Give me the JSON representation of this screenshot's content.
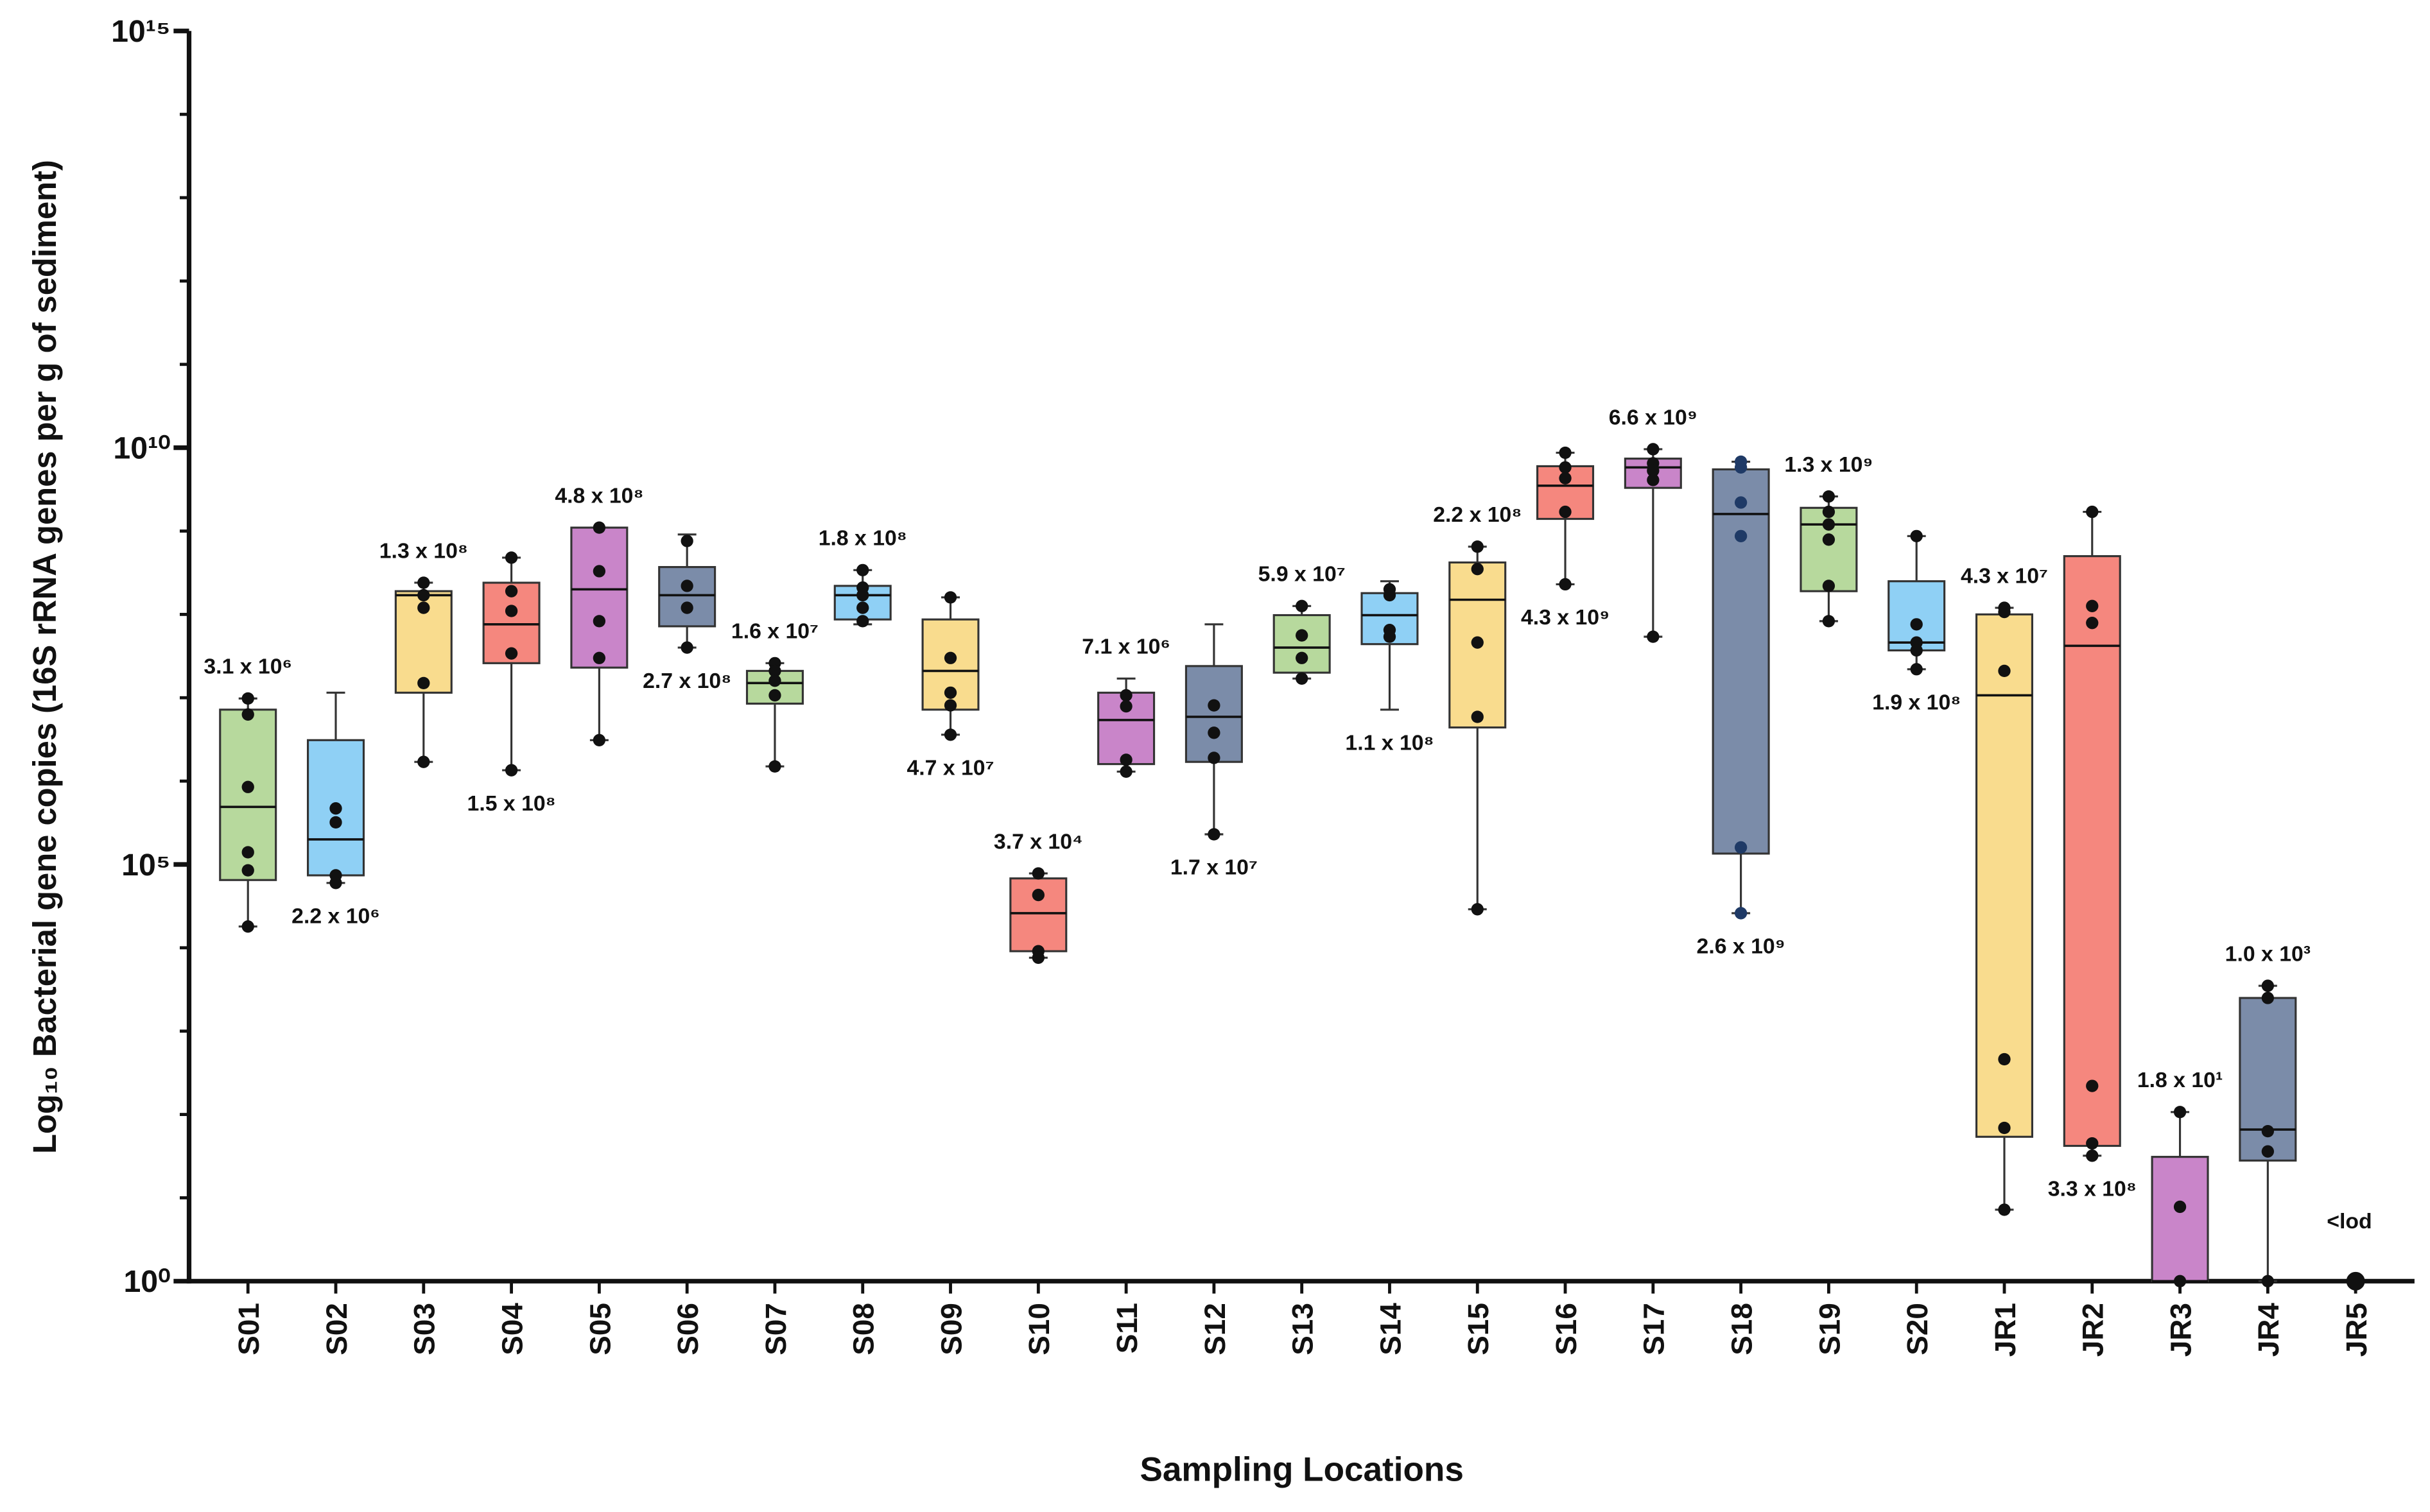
{
  "chart_data": {
    "type": "box",
    "xlabel": "Sampling Locations",
    "ylabel": "Log₁₀ Bacterial gene copies (16S rRNA genes per g of sediment)",
    "log_y": true,
    "ylim": [
      1,
      1000000000000000.0
    ],
    "yticks": [
      {
        "value": 1,
        "label": "10⁰"
      },
      {
        "value": 100000.0,
        "label": "10⁵"
      },
      {
        "value": 10000000000.0,
        "label": "10¹⁰"
      },
      {
        "value": 1000000000000000.0,
        "label": "10¹⁵"
      }
    ],
    "yminor": [
      10,
      100,
      1000,
      10000,
      1000000.0,
      10000000.0,
      100000000.0,
      1000000000.0,
      100000000000.0,
      1000000000000.0,
      10000000000000.0,
      100000000000000.0
    ],
    "point_color": "#111111",
    "edge_color": "#333333",
    "categories": [
      "S01",
      "S02",
      "S03",
      "S04",
      "S05",
      "S06",
      "S07",
      "S08",
      "S09",
      "S10",
      "S11",
      "S12",
      "S13",
      "S14",
      "S15",
      "S16",
      "S17",
      "S18",
      "S19",
      "S20",
      "JR1",
      "JR2",
      "JR3",
      "JR4",
      "JR5"
    ],
    "series": [
      {
        "name": "S01",
        "color": "#b7d99d",
        "whislo": 18000.0,
        "q1": 65000.0,
        "med": 490000.0,
        "q3": 7200000.0,
        "whishi": 9800000.0,
        "points": [
          9800000.0,
          6300000.0,
          850000.0,
          140000.0,
          85000.0,
          18000.0
        ],
        "label": "3.1 x 10⁶"
      },
      {
        "name": "S02",
        "color": "#8fd0f5",
        "whislo": 60000.0,
        "q1": 74000.0,
        "med": 200000.0,
        "q3": 3100000.0,
        "whishi": 11500000.0,
        "points": [
          470000.0,
          320000.0,
          74000.0,
          60000.0
        ],
        "label": "2.2 x 10⁶"
      },
      {
        "name": "S03",
        "color": "#f9dc8e",
        "whislo": 1700000.0,
        "q1": 11500000.0,
        "med": 170000000.0,
        "q3": 190000000.0,
        "whishi": 240000000.0,
        "points": [
          240000000.0,
          170000000.0,
          120000000.0,
          15000000.0,
          1700000.0
        ],
        "label": "1.3 x 10⁸"
      },
      {
        "name": "S04",
        "color": "#f5877e",
        "whislo": 1350000.0,
        "q1": 26000000.0,
        "med": 76000000.0,
        "q3": 240000000.0,
        "whishi": 480000000.0,
        "points": [
          480000000.0,
          190000000.0,
          110000000.0,
          34000000.0,
          1350000.0
        ],
        "label": "1.5 x 10⁸"
      },
      {
        "name": "S05",
        "color": "#c985c9",
        "whislo": 3100000.0,
        "q1": 23000000.0,
        "med": 200000000.0,
        "q3": 1100000000.0,
        "whishi": 1100000000.0,
        "points": [
          1100000000.0,
          330000000.0,
          83000000.0,
          30000000.0,
          3100000.0
        ],
        "label": "4.8 x 10⁸"
      },
      {
        "name": "S06",
        "color": "#7b8ca9",
        "whislo": 40000000.0,
        "q1": 72000000.0,
        "med": 170000000.0,
        "q3": 370000000.0,
        "whishi": 910000000.0,
        "points": [
          760000000.0,
          220000000.0,
          120000000.0,
          40000000.0
        ],
        "label": "2.7 x 10⁸"
      },
      {
        "name": "S07",
        "color": "#b7d99d",
        "whislo": 1500000.0,
        "q1": 8500000.0,
        "med": 15000000.0,
        "q3": 21000000.0,
        "whishi": 26000000.0,
        "points": [
          26000000.0,
          21000000.0,
          16000000.0,
          10700000.0,
          1500000.0
        ],
        "label": "1.6 x 10⁷"
      },
      {
        "name": "S08",
        "color": "#8fd0f5",
        "whislo": 76000000.0,
        "q1": 87000000.0,
        "med": 170000000.0,
        "q3": 220000000.0,
        "whishi": 340000000.0,
        "points": [
          340000000.0,
          210000000.0,
          170000000.0,
          120000000.0,
          83000000.0
        ],
        "label": "1.8 x 10⁸"
      },
      {
        "name": "S09",
        "color": "#f9dc8e",
        "whislo": 3600000.0,
        "q1": 7200000.0,
        "med": 21000000.0,
        "q3": 87000000.0,
        "whishi": 160000000.0,
        "points": [
          160000000.0,
          30000000.0,
          11500000.0,
          8100000.0,
          3600000.0
        ],
        "label": "4.7 x 10⁷"
      },
      {
        "name": "S10",
        "color": "#f5877e",
        "whislo": 7600.0,
        "q1": 9100.0,
        "med": 26000.0,
        "q3": 68000.0,
        "whishi": 78000.0,
        "points": [
          78000.0,
          43000.0,
          9100.0,
          7600.0
        ],
        "label": "3.7 x 10⁴"
      },
      {
        "name": "S11",
        "color": "#c985c9",
        "whislo": 1300000.0,
        "q1": 1600000.0,
        "med": 5400000.0,
        "q3": 11500000.0,
        "whishi": 17000000.0,
        "points": [
          10700000.0,
          7900000.0,
          1800000.0,
          1300000.0
        ],
        "label": "7.1 x 10⁶"
      },
      {
        "name": "S12",
        "color": "#7b8ca9",
        "whislo": 230000.0,
        "q1": 1700000.0,
        "med": 5900000.0,
        "q3": 24000000.0,
        "whishi": 76000000.0,
        "points": [
          8100000.0,
          3800000.0,
          1900000.0,
          230000.0
        ],
        "label": "1.7 x 10⁷"
      },
      {
        "name": "S13",
        "color": "#b7d99d",
        "whislo": 17000000.0,
        "q1": 20000000.0,
        "med": 40000000.0,
        "q3": 98000000.0,
        "whishi": 126000000.0,
        "points": [
          126000000.0,
          56000000.0,
          30000000.0,
          17000000.0
        ],
        "label": "5.9 x 10⁷"
      },
      {
        "name": "S14",
        "color": "#8fd0f5",
        "whislo": 7200000.0,
        "q1": 44000000.0,
        "med": 98000000.0,
        "q3": 180000000.0,
        "whishi": 250000000.0,
        "points": [
          200000000.0,
          170000000.0,
          65000000.0,
          54000000.0
        ],
        "label": "1.1 x 10⁸"
      },
      {
        "name": "S15",
        "color": "#f9dc8e",
        "whislo": 29000.0,
        "q1": 4400000.0,
        "med": 150000000.0,
        "q3": 420000000.0,
        "whishi": 650000000.0,
        "points": [
          650000000.0,
          350000000.0,
          46000000.0,
          5900000.0,
          29000.0
        ],
        "label": "2.2 x 10⁸"
      },
      {
        "name": "S16",
        "color": "#f5877e",
        "whislo": 230000000.0,
        "q1": 1400000000.0,
        "med": 3500000000.0,
        "q3": 6000000000.0,
        "whishi": 8700000000.0,
        "points": [
          8700000000.0,
          5800000000.0,
          4300000000.0,
          1700000000.0,
          230000000.0
        ],
        "label": "4.3 x 10⁹"
      },
      {
        "name": "S17",
        "color": "#c985c9",
        "whislo": 54000000.0,
        "q1": 3300000000.0,
        "med": 5800000000.0,
        "q3": 7400000000.0,
        "whishi": 9600000000.0,
        "points": [
          9600000000.0,
          6500000000.0,
          5300000000.0,
          4100000000.0,
          54000000.0
        ],
        "label": "6.6 x 10⁹"
      },
      {
        "name": "S18",
        "color": "#7b8ca9",
        "point_color": "#1f3a66",
        "whislo": 26000.0,
        "q1": 135000.0,
        "med": 1600000000.0,
        "q3": 5500000000.0,
        "whishi": 6800000000.0,
        "points": [
          6800000000.0,
          5800000000.0,
          2200000000.0,
          870000000.0,
          160000.0,
          26000.0
        ],
        "label": "2.6 x 10⁹"
      },
      {
        "name": "S19",
        "color": "#b7d99d",
        "whislo": 83000000.0,
        "q1": 190000000.0,
        "med": 1200000000.0,
        "q3": 1900000000.0,
        "whishi": 2600000000.0,
        "points": [
          2600000000.0,
          1700000000.0,
          1200000000.0,
          790000000.0,
          220000000.0,
          83000000.0
        ],
        "label": "1.3 x 10⁹"
      },
      {
        "name": "S20",
        "color": "#8fd0f5",
        "whislo": 22000000.0,
        "q1": 37000000.0,
        "med": 46000000.0,
        "q3": 250000000.0,
        "whishi": 870000000.0,
        "points": [
          870000000.0,
          76000000.0,
          46000000.0,
          37000000.0,
          22000000.0
        ],
        "label": "1.9 x 10⁸"
      },
      {
        "name": "JR1",
        "color": "#f9dc8e",
        "whislo": 7.2,
        "q1": 54,
        "med": 10700000.0,
        "q3": 100000000.0,
        "whishi": 120000000.0,
        "points": [
          120000000.0,
          107000000.0,
          21000000.0,
          460,
          69,
          7.2
        ],
        "label": "4.3 x 10⁷"
      },
      {
        "name": "JR2",
        "color": "#f5877e",
        "whislo": 32,
        "q1": 42,
        "med": 42000000.0,
        "q3": 500000000.0,
        "whishi": 1700000000.0,
        "points": [
          1700000000.0,
          126000000.0,
          79000000.0,
          220,
          45,
          32
        ],
        "label": "3.3 x 10⁸"
      },
      {
        "name": "JR3",
        "color": "#c985c9",
        "whislo": 1,
        "q1": 1,
        "med": 1,
        "q3": 31,
        "whishi": 107,
        "points": [
          107,
          7.8,
          1
        ],
        "label": "1.8 x 10¹"
      },
      {
        "name": "JR4",
        "color": "#7b8ca9",
        "whislo": 1,
        "q1": 28,
        "med": 66,
        "q3": 2500,
        "whishi": 3500,
        "points": [
          3500,
          2500,
          63,
          36,
          1
        ],
        "label": "1.0 x 10³"
      },
      {
        "name": "JR5",
        "color": "#7b8ca9",
        "whislo": null,
        "q1": null,
        "med": null,
        "q3": null,
        "whishi": null,
        "points": [
          1
        ],
        "label": "<lod"
      }
    ]
  }
}
